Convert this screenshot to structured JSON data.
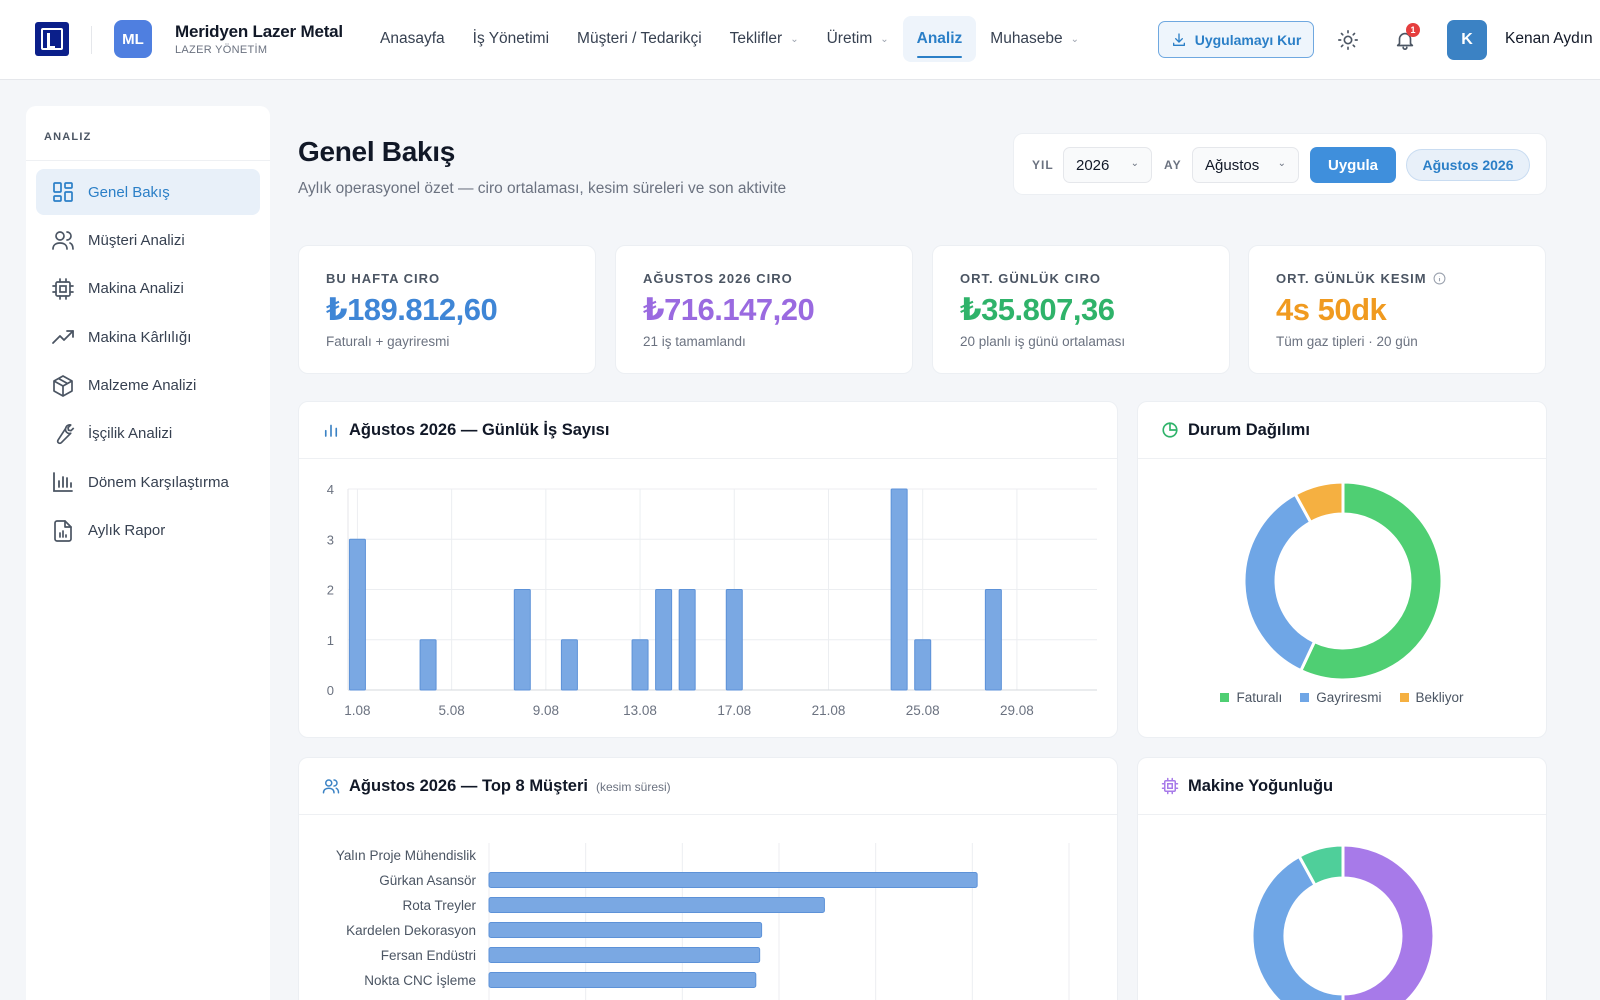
{
  "app": {
    "company_initials": "ML",
    "company_name": "Meridyen Lazer Metal",
    "company_sub": "LAZER YÖNETİM"
  },
  "nav": {
    "items": [
      {
        "label": "Anasayfa",
        "dropdown": false
      },
      {
        "label": "İş Yönetimi",
        "dropdown": false
      },
      {
        "label": "Müşteri / Tedarikçi",
        "dropdown": false
      },
      {
        "label": "Teklifler",
        "dropdown": true
      },
      {
        "label": "Üretim",
        "dropdown": true
      },
      {
        "label": "Analiz",
        "dropdown": false,
        "active": true
      },
      {
        "label": "Muhasebe",
        "dropdown": true
      }
    ],
    "install_label": "Uygulamayı Kur",
    "notification_count": "1",
    "user_initial": "K",
    "user_name": "Kenan Aydın"
  },
  "sidebar": {
    "title": "ANALIZ",
    "items": [
      {
        "label": "Genel Bakış",
        "icon": "grid-icon",
        "active": true
      },
      {
        "label": "Müşteri Analizi",
        "icon": "users-icon"
      },
      {
        "label": "Makina Analizi",
        "icon": "cpu-icon"
      },
      {
        "label": "Makina Kârlılığı",
        "icon": "trending-up-icon"
      },
      {
        "label": "Malzeme Analizi",
        "icon": "box-icon"
      },
      {
        "label": "İşçilik Analizi",
        "icon": "wrench-icon"
      },
      {
        "label": "Dönem Karşılaştırma",
        "icon": "bar-chart-icon"
      },
      {
        "label": "Aylık Rapor",
        "icon": "report-icon"
      }
    ]
  },
  "header": {
    "title": "Genel Bakış",
    "subtitle": "Aylık operasyonel özet — ciro ortalaması, kesim süreleri ve son aktivite"
  },
  "filter": {
    "year_label": "YIL",
    "year_value": "2026",
    "month_label": "AY",
    "month_value": "Ağustos",
    "apply_label": "Uygula",
    "period_badge": "Ağustos 2026"
  },
  "kpis": [
    {
      "label": "BU HAFTA CIRO",
      "value": "₺189.812,60",
      "note": "Faturalı + gayriresmi",
      "color": "#3f86d6"
    },
    {
      "label": "AĞUSTOS 2026 CIRO",
      "value": "₺716.147,20",
      "note": "21 iş tamamlandı",
      "color": "#9a6ae0"
    },
    {
      "label": "ORT. GÜNLÜK CIRO",
      "value": "₺35.807,36",
      "note": "20 planlı iş günü ortalaması",
      "color": "#2fb36a"
    },
    {
      "label": "ORT. GÜNLÜK KESIM",
      "value": "4s 50dk",
      "note": "Tüm gaz tipleri · 20 gün",
      "color": "#f09a1f"
    }
  ],
  "panels": {
    "daily_title": "Ağustos 2026 — Günlük İş Sayısı",
    "status_title": "Durum Dağılımı",
    "top_customers_title": "Ağustos 2026 — Top 8 Müşteri",
    "top_customers_hint": "(kesim süresi)",
    "machine_title": "Makine Yoğunluğu"
  },
  "chart_data": [
    {
      "type": "bar",
      "title": "Ağustos 2026 — Günlük İş Sayısı",
      "x": [
        1,
        2,
        3,
        4,
        5,
        6,
        7,
        8,
        9,
        10,
        11,
        12,
        13,
        14,
        15,
        16,
        17,
        18,
        19,
        20,
        21,
        22,
        23,
        24,
        25,
        26,
        27,
        28,
        29,
        30,
        31
      ],
      "values": [
        3,
        0,
        0,
        1,
        0,
        0,
        0,
        2,
        0,
        1,
        0,
        0,
        1,
        2,
        2,
        0,
        2,
        0,
        0,
        0,
        0,
        0,
        0,
        4,
        1,
        0,
        0,
        2,
        0,
        0,
        0
      ],
      "xtick_labels": [
        "1.08",
        "5.08",
        "9.08",
        "13.08",
        "17.08",
        "21.08",
        "25.08",
        "29.08"
      ],
      "xtick_positions": [
        1,
        5,
        9,
        13,
        17,
        21,
        25,
        29
      ],
      "yticks": [
        0,
        1,
        2,
        3,
        4
      ],
      "ylim": [
        0,
        4
      ],
      "color": "#7aa8e3"
    },
    {
      "type": "pie",
      "title": "Durum Dağılımı",
      "labels": [
        "Faturalı",
        "Gayriresmi",
        "Bekliyor"
      ],
      "values": [
        57,
        35,
        8
      ],
      "colors": [
        "#4fcf73",
        "#6fa6e6",
        "#f5b041"
      ],
      "legend": "bottom"
    },
    {
      "type": "bar",
      "orientation": "horizontal",
      "title": "Ağustos 2026 — Top 8 Müşteri",
      "categories": [
        "Yalın Proje Mühendislik",
        "Gürkan Asansör",
        "Rota Treyler",
        "Kardelen Dekorasyon",
        "Fersan Endüstri",
        "Nokta CNC İşleme"
      ],
      "values": [
        0,
        505,
        347,
        282,
        280,
        276
      ],
      "xlim": [
        0,
        600
      ],
      "color": "#7aa8e3"
    },
    {
      "type": "pie",
      "title": "Makine Yoğunluğu",
      "values": [
        50,
        42,
        8
      ],
      "colors": [
        "#a77ae9",
        "#6fa6e6",
        "#4fcf9a"
      ]
    }
  ]
}
